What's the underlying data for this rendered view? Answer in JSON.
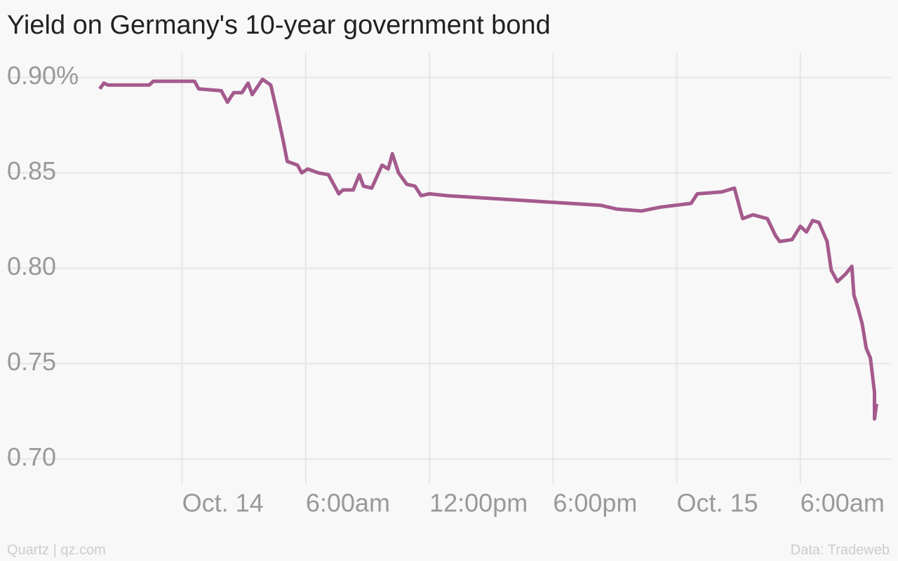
{
  "chart_data": {
    "type": "line",
    "title": "Yield on Germany's 10-year government bond",
    "source": "Data: Tradeweb",
    "credit": "Quartz | qz.com",
    "x": [
      -4.0,
      -3.8,
      -3.6,
      -2.4,
      -1.6,
      -1.4,
      0.6,
      0.8,
      1.9,
      2.2,
      2.5,
      2.9,
      3.2,
      3.4,
      3.9,
      4.3,
      4.6,
      4.9,
      5.1,
      5.6,
      5.8,
      6.1,
      6.6,
      7.1,
      7.4,
      7.6,
      7.8,
      8.3,
      8.6,
      8.8,
      9.2,
      9.7,
      10.0,
      10.2,
      10.5,
      10.9,
      11.3,
      11.6,
      12.0,
      12.9,
      20.3,
      21.1,
      22.3,
      23.2,
      24.7,
      25.0,
      26.2,
      26.8,
      27.0,
      27.2,
      27.7,
      28.4,
      28.8,
      29.0,
      29.6,
      30.0,
      30.3,
      30.6,
      30.9,
      31.3,
      31.5,
      31.8,
      32.2,
      32.5,
      32.6,
      32.8,
      33.0,
      33.2,
      33.4,
      33.6,
      33.6,
      33.7
    ],
    "series": [
      {
        "name": "Yield",
        "color": "#a45a8c",
        "values": [
          0.894,
          0.897,
          0.896,
          0.896,
          0.896,
          0.898,
          0.898,
          0.894,
          0.893,
          0.887,
          0.892,
          0.892,
          0.897,
          0.891,
          0.899,
          0.896,
          0.882,
          0.867,
          0.856,
          0.854,
          0.85,
          0.852,
          0.85,
          0.849,
          0.843,
          0.839,
          0.841,
          0.841,
          0.849,
          0.843,
          0.842,
          0.854,
          0.852,
          0.86,
          0.85,
          0.844,
          0.843,
          0.838,
          0.839,
          0.838,
          0.833,
          0.831,
          0.83,
          0.832,
          0.834,
          0.839,
          0.84,
          0.842,
          0.834,
          0.826,
          0.828,
          0.826,
          0.817,
          0.814,
          0.815,
          0.822,
          0.819,
          0.825,
          0.824,
          0.814,
          0.799,
          0.793,
          0.797,
          0.801,
          0.786,
          0.779,
          0.771,
          0.758,
          0.753,
          0.735,
          0.721,
          0.729
        ]
      }
    ],
    "xlim": [
      -8.5,
      34.4
    ],
    "xticks": [
      {
        "value": 0,
        "label": "Oct. 14"
      },
      {
        "value": 6,
        "label": "6:00am"
      },
      {
        "value": 12,
        "label": "12:00pm"
      },
      {
        "value": 18,
        "label": "6:00pm"
      },
      {
        "value": 24,
        "label": "Oct. 15"
      },
      {
        "value": 30,
        "label": "6:00am"
      }
    ],
    "ylim": [
      0.687,
      0.913
    ],
    "yticks": [
      {
        "value": 0.7,
        "label": "0.70"
      },
      0.75,
      {
        "value": 0.8,
        "label": "0.80"
      },
      0.85,
      {
        "value": 0.9,
        "label": "0.90%"
      }
    ],
    "grid": true
  }
}
